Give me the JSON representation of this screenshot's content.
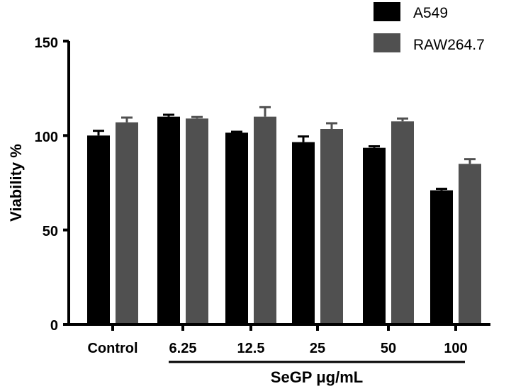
{
  "chart_data": {
    "type": "bar",
    "title": "",
    "xlabel": "SeGP μg/mL",
    "ylabel": "Viability %",
    "ylim": [
      0,
      150
    ],
    "yticks": [
      0,
      50,
      100,
      150
    ],
    "categories": [
      "Control",
      "6.25",
      "12.5",
      "25",
      "50",
      "100"
    ],
    "series": [
      {
        "name": "A549",
        "color": "#000000",
        "values": [
          100,
          110,
          101.5,
          96.5,
          93.5,
          71
        ],
        "errors": [
          2.5,
          1.0,
          0.5,
          3.0,
          0.8,
          0.8
        ]
      },
      {
        "name": "RAW264.7",
        "color": "#505050",
        "values": [
          107,
          109,
          110,
          103.5,
          107.5,
          85
        ],
        "errors": [
          2.5,
          0.8,
          5.0,
          3.0,
          1.5,
          2.5
        ]
      }
    ],
    "legend_position": "top-right",
    "grid": false
  }
}
